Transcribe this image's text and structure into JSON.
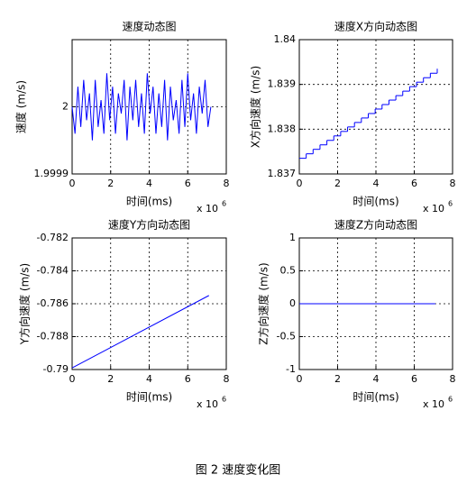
{
  "caption": "图 2 速度变化图",
  "chart_data": [
    {
      "type": "line",
      "title": "速度动态图",
      "xlabel": "时间(ms)",
      "ylabel": "速度 (m/s)",
      "x_multiplier": "x 10",
      "x_exponent": "6",
      "xlim": [
        0,
        8
      ],
      "xticks": [
        0,
        2,
        4,
        6,
        8
      ],
      "ylim": [
        1.9999,
        2.0001
      ],
      "yticks": [
        1.9999,
        2
      ],
      "grid": true,
      "series": [
        {
          "color": "#0000ff",
          "x": [
            0,
            0.15,
            0.3,
            0.45,
            0.6,
            0.75,
            0.9,
            1.05,
            1.2,
            1.35,
            1.5,
            1.65,
            1.8,
            1.95,
            2.1,
            2.25,
            2.4,
            2.55,
            2.7,
            2.85,
            3,
            3.15,
            3.3,
            3.45,
            3.6,
            3.75,
            3.9,
            4.05,
            4.2,
            4.35,
            4.5,
            4.65,
            4.8,
            4.95,
            5.1,
            5.25,
            5.4,
            5.55,
            5.7,
            5.85,
            6,
            6.15,
            6.3,
            6.45,
            6.6,
            6.75,
            6.9,
            7.05,
            7.2
          ],
          "values": [
            2,
            1.99996,
            2.00003,
            1.99997,
            2.00004,
            1.99998,
            2.00002,
            1.99995,
            2.00004,
            1.99997,
            2.00001,
            1.99996,
            2.00005,
            1.99998,
            2.00003,
            1.99996,
            2.00002,
            1.99999,
            2.00004,
            1.99995,
            2.00003,
            1.99998,
            2.00004,
            1.99997,
            2.00002,
            1.99996,
            2.00005,
            1.99999,
            2.00003,
            1.99996,
            2.00002,
            1.99997,
            2.00004,
            1.99995,
            2.00003,
            1.99998,
            2.00001,
            1.99996,
            2.00004,
            1.99997,
            2.00005,
            1.99998,
            2.00002,
            1.99996,
            2.00003,
            1.99999,
            2.00004,
            1.99997,
            2
          ]
        }
      ]
    },
    {
      "type": "line",
      "title": "速度X方向动态图",
      "xlabel": "时间(ms)",
      "ylabel": "X方向速度 (m/s)",
      "x_multiplier": "x 10",
      "x_exponent": "6",
      "xlim": [
        0,
        8
      ],
      "xticks": [
        0,
        2,
        4,
        6,
        8
      ],
      "ylim": [
        1.837,
        1.84
      ],
      "yticks": [
        1.837,
        1.838,
        1.839,
        1.84
      ],
      "grid": true,
      "drawstyle": "steps-post",
      "series": [
        {
          "color": "#0000ff",
          "x": [
            0,
            0.36,
            0.72,
            1.08,
            1.44,
            1.8,
            2.16,
            2.52,
            2.88,
            3.24,
            3.6,
            3.96,
            4.32,
            4.68,
            5.04,
            5.4,
            5.76,
            6.12,
            6.48,
            6.84,
            7.2
          ],
          "values": [
            1.83735,
            1.83745,
            1.83755,
            1.83765,
            1.83775,
            1.83785,
            1.83795,
            1.83805,
            1.83815,
            1.83825,
            1.83835,
            1.83845,
            1.83855,
            1.83865,
            1.83875,
            1.83885,
            1.83895,
            1.83905,
            1.83915,
            1.83925,
            1.83935
          ]
        }
      ]
    },
    {
      "type": "line",
      "title": "速度Y方向动态图",
      "xlabel": "时间(ms)",
      "ylabel": "Y方向速度 (m/s)",
      "x_multiplier": "x 10",
      "x_exponent": "6",
      "xlim": [
        0,
        8
      ],
      "xticks": [
        0,
        2,
        4,
        6,
        8
      ],
      "ylim": [
        -0.79,
        -0.782
      ],
      "yticks": [
        -0.79,
        -0.788,
        -0.786,
        -0.784,
        -0.782
      ],
      "grid": true,
      "series": [
        {
          "color": "#0000ff",
          "x": [
            0,
            7.1
          ],
          "values": [
            -0.7899,
            -0.7855
          ]
        }
      ]
    },
    {
      "type": "line",
      "title": "速度Z方向动态图",
      "xlabel": "时间(ms)",
      "ylabel": "Z方向速度 (m/s)",
      "x_multiplier": "x 10",
      "x_exponent": "6",
      "xlim": [
        0,
        8
      ],
      "xticks": [
        0,
        2,
        4,
        6,
        8
      ],
      "ylim": [
        -1,
        1
      ],
      "yticks": [
        -1,
        -0.5,
        0,
        0.5,
        1
      ],
      "grid": true,
      "series": [
        {
          "color": "#0000ff",
          "x": [
            0,
            7.1
          ],
          "values": [
            0,
            0
          ]
        }
      ]
    }
  ]
}
